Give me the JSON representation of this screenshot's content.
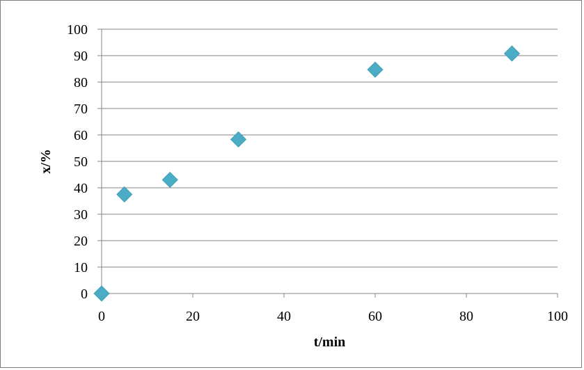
{
  "chart_data": {
    "type": "scatter",
    "title": "",
    "xlabel": "t/min",
    "ylabel": "x/%",
    "xlim": [
      0,
      100
    ],
    "ylim": [
      0,
      100
    ],
    "x_ticks": [
      "0",
      "20",
      "40",
      "60",
      "80",
      "100"
    ],
    "y_ticks": [
      "0",
      "10",
      "20",
      "30",
      "40",
      "50",
      "60",
      "70",
      "80",
      "90",
      "100"
    ],
    "grid": "horizontal",
    "legend": "none",
    "marker": "diamond",
    "marker_color": "#4bacc6",
    "series": [
      {
        "x": [
          0,
          5,
          15,
          30,
          60,
          90
        ],
        "y": [
          0,
          37.5,
          43,
          58.3,
          84.7,
          90.8
        ]
      }
    ]
  }
}
